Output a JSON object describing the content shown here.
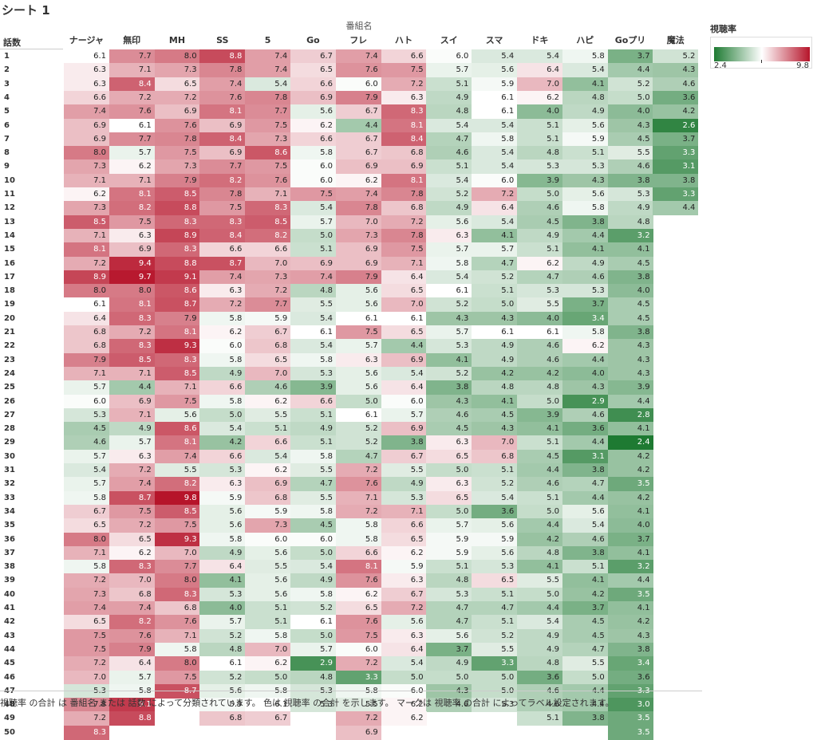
{
  "sheet_title": "シート 1",
  "footer_note": "視聴率 の合計 は 番組名 または 話数 によって分類されています。 色は 視聴率 の合計 を示します。 マークは 視聴率 の合計 によってラベル設定されます。",
  "legend": {
    "title": "視聴率",
    "min_label": "2.4",
    "max_label": "9.8"
  },
  "colors": {
    "low": "#1e7a32",
    "mid": "#ffffff",
    "high": "#b6142a"
  },
  "chart_data": {
    "type": "heatmap",
    "title": "シート 1",
    "xlabel": "番組名",
    "ylabel": "話数",
    "color_range": [
      2.4,
      9.8
    ],
    "columns": [
      "ナージャ",
      "無印",
      "MH",
      "SS",
      "5",
      "Go",
      "フレ",
      "ハト",
      "スイ",
      "スマ",
      "ドキ",
      "ハピ",
      "Goプリ",
      "魔法"
    ],
    "rows": [
      "1",
      "2",
      "3",
      "4",
      "5",
      "6",
      "7",
      "8",
      "9",
      "10",
      "11",
      "12",
      "13",
      "14",
      "15",
      "16",
      "17",
      "18",
      "19",
      "20",
      "21",
      "22",
      "23",
      "24",
      "25",
      "26",
      "27",
      "28",
      "29",
      "30",
      "31",
      "32",
      "33",
      "34",
      "35",
      "36",
      "37",
      "38",
      "39",
      "40",
      "41",
      "42",
      "43",
      "44",
      "45",
      "46",
      "47",
      "48",
      "49",
      "50"
    ],
    "values": [
      [
        6.1,
        7.7,
        8.0,
        8.8,
        7.4,
        6.7,
        7.4,
        6.6,
        6.0,
        5.4,
        5.4,
        5.8,
        3.7,
        5.2
      ],
      [
        6.3,
        7.1,
        7.3,
        7.8,
        7.4,
        6.5,
        7.6,
        7.5,
        5.7,
        5.6,
        6.4,
        5.4,
        4.4,
        4.3
      ],
      [
        6.3,
        8.4,
        6.5,
        7.4,
        5.4,
        6.6,
        6.0,
        7.2,
        5.1,
        5.9,
        7.0,
        4.1,
        5.2,
        4.6
      ],
      [
        6.6,
        7.2,
        7.2,
        7.6,
        7.8,
        6.9,
        7.9,
        6.3,
        4.9,
        6.1,
        6.2,
        4.8,
        5.0,
        3.6
      ],
      [
        7.4,
        7.6,
        6.9,
        8.1,
        7.7,
        5.6,
        6.7,
        8.3,
        4.8,
        6.1,
        4.0,
        4.9,
        4.0,
        4.2
      ],
      [
        6.9,
        6.1,
        7.6,
        6.9,
        7.5,
        6.2,
        4.4,
        8.1,
        5.4,
        5.4,
        5.1,
        5.6,
        4.3,
        2.6
      ],
      [
        6.9,
        7.7,
        7.8,
        8.4,
        7.3,
        6.6,
        6.7,
        8.4,
        4.7,
        5.8,
        5.1,
        5.9,
        4.5,
        3.7
      ],
      [
        8.0,
        5.7,
        7.5,
        6.9,
        8.6,
        5.8,
        6.7,
        6.8,
        4.6,
        5.4,
        4.8,
        5.1,
        5.5,
        3.3
      ],
      [
        7.3,
        6.2,
        7.3,
        7.7,
        7.5,
        6.0,
        6.9,
        6.9,
        5.1,
        5.4,
        5.3,
        5.3,
        4.6,
        3.1
      ],
      [
        7.1,
        7.1,
        7.9,
        8.2,
        7.6,
        6.0,
        6.2,
        8.1,
        5.4,
        6.0,
        3.9,
        4.3,
        3.8,
        3.8
      ],
      [
        6.2,
        8.1,
        8.5,
        7.8,
        7.1,
        7.5,
        7.4,
        7.8,
        5.2,
        7.2,
        5.0,
        5.6,
        5.3,
        3.3
      ],
      [
        7.3,
        8.2,
        8.8,
        7.5,
        8.3,
        5.4,
        7.8,
        6.8,
        4.9,
        6.4,
        4.6,
        5.8,
        4.9,
        4.4
      ],
      [
        8.5,
        7.5,
        8.3,
        8.3,
        8.5,
        5.7,
        7.0,
        7.2,
        5.6,
        5.4,
        4.5,
        3.8,
        4.8,
        null
      ],
      [
        7.1,
        6.3,
        8.9,
        8.4,
        8.2,
        5.0,
        7.3,
        7.8,
        6.3,
        4.1,
        4.9,
        4.4,
        3.2,
        null
      ],
      [
        8.1,
        6.9,
        8.3,
        6.6,
        6.6,
        5.1,
        6.9,
        7.5,
        5.7,
        5.7,
        5.1,
        4.1,
        4.1,
        null
      ],
      [
        7.2,
        9.4,
        8.8,
        8.7,
        7.0,
        6.9,
        6.9,
        7.1,
        5.8,
        4.7,
        6.2,
        4.9,
        4.5,
        null
      ],
      [
        8.9,
        9.7,
        9.1,
        7.4,
        7.3,
        7.4,
        7.9,
        6.4,
        5.4,
        5.2,
        4.7,
        4.6,
        3.8,
        null
      ],
      [
        8.0,
        8.0,
        8.6,
        6.3,
        7.2,
        4.8,
        5.6,
        6.5,
        6.1,
        5.1,
        5.3,
        5.3,
        4.0,
        null
      ],
      [
        6.1,
        8.1,
        8.7,
        7.2,
        7.7,
        5.5,
        5.6,
        7.0,
        5.2,
        5.0,
        5.5,
        3.7,
        4.5,
        null
      ],
      [
        6.4,
        8.3,
        7.9,
        5.8,
        5.9,
        5.4,
        6.1,
        6.1,
        4.3,
        4.3,
        4.0,
        3.4,
        4.5,
        null
      ],
      [
        6.8,
        7.2,
        8.1,
        6.2,
        6.7,
        6.1,
        7.5,
        6.5,
        5.7,
        6.1,
        6.1,
        5.8,
        3.8,
        null
      ],
      [
        6.8,
        8.3,
        9.3,
        6.0,
        6.8,
        5.4,
        5.7,
        4.4,
        5.3,
        4.9,
        4.6,
        6.2,
        4.3,
        null
      ],
      [
        7.9,
        8.5,
        8.3,
        5.8,
        6.5,
        5.8,
        6.3,
        6.9,
        4.1,
        4.9,
        4.6,
        4.4,
        4.3,
        null
      ],
      [
        7.1,
        7.1,
        8.5,
        4.9,
        7.0,
        5.3,
        5.6,
        5.4,
        5.2,
        4.2,
        4.2,
        4.0,
        4.3,
        null
      ],
      [
        5.7,
        4.4,
        7.1,
        6.6,
        4.6,
        3.9,
        5.6,
        6.4,
        3.8,
        4.8,
        4.8,
        4.3,
        3.9,
        null
      ],
      [
        6.0,
        6.9,
        7.5,
        5.8,
        6.2,
        6.6,
        5.0,
        6.0,
        4.3,
        4.1,
        5.0,
        2.9,
        4.4,
        null
      ],
      [
        5.3,
        7.1,
        5.6,
        5.0,
        5.5,
        5.1,
        6.1,
        5.7,
        4.6,
        4.5,
        3.9,
        4.6,
        2.8,
        null
      ],
      [
        4.5,
        4.9,
        8.6,
        5.4,
        5.1,
        4.9,
        5.2,
        6.9,
        4.5,
        4.3,
        4.1,
        3.6,
        4.1,
        null
      ],
      [
        4.6,
        5.7,
        8.1,
        4.2,
        6.6,
        5.1,
        5.2,
        3.8,
        6.3,
        7.0,
        5.1,
        4.4,
        2.4,
        null
      ],
      [
        5.7,
        6.3,
        7.4,
        6.6,
        5.4,
        5.8,
        4.7,
        6.7,
        6.5,
        6.8,
        4.5,
        3.1,
        4.2,
        null
      ],
      [
        5.4,
        7.2,
        5.5,
        5.3,
        6.2,
        5.5,
        7.2,
        5.5,
        5.0,
        5.1,
        4.4,
        3.8,
        4.2,
        null
      ],
      [
        5.7,
        7.4,
        8.2,
        6.3,
        6.9,
        4.7,
        7.6,
        4.9,
        6.3,
        5.2,
        4.6,
        4.7,
        3.5,
        null
      ],
      [
        5.8,
        8.7,
        9.8,
        5.9,
        6.8,
        5.5,
        7.1,
        5.3,
        6.5,
        5.4,
        5.1,
        4.4,
        4.2,
        null
      ],
      [
        6.7,
        7.5,
        8.5,
        5.6,
        5.9,
        5.8,
        7.2,
        7.1,
        5.0,
        3.6,
        5.0,
        5.6,
        4.1,
        null
      ],
      [
        6.5,
        7.2,
        7.5,
        5.6,
        7.3,
        4.5,
        5.8,
        6.6,
        5.7,
        5.6,
        4.4,
        5.4,
        4.0,
        null
      ],
      [
        8.0,
        6.5,
        9.3,
        5.8,
        6.0,
        6.0,
        5.8,
        6.5,
        5.9,
        5.9,
        4.2,
        4.6,
        3.7,
        null
      ],
      [
        7.1,
        6.2,
        7.0,
        4.9,
        5.6,
        5.0,
        6.6,
        6.2,
        5.9,
        5.6,
        4.8,
        3.8,
        4.1,
        null
      ],
      [
        5.8,
        8.3,
        7.7,
        6.4,
        5.5,
        5.4,
        8.1,
        5.9,
        5.1,
        5.3,
        4.1,
        5.1,
        3.2,
        null
      ],
      [
        7.2,
        7.0,
        8.0,
        4.1,
        5.6,
        4.9,
        7.6,
        6.3,
        4.8,
        6.5,
        5.5,
        4.1,
        4.4,
        null
      ],
      [
        7.3,
        6.8,
        8.3,
        5.3,
        5.6,
        5.8,
        6.2,
        6.7,
        5.3,
        5.1,
        5.0,
        4.2,
        3.5,
        null
      ],
      [
        7.4,
        7.4,
        6.8,
        4.0,
        5.1,
        5.2,
        6.5,
        7.2,
        4.7,
        4.7,
        4.4,
        3.7,
        4.1,
        null
      ],
      [
        6.5,
        8.2,
        7.6,
        5.7,
        5.1,
        6.1,
        7.6,
        5.6,
        4.7,
        5.1,
        5.4,
        4.5,
        4.2,
        null
      ],
      [
        7.5,
        7.6,
        7.1,
        5.2,
        5.8,
        5.0,
        7.5,
        6.3,
        5.6,
        5.2,
        4.9,
        4.5,
        4.3,
        null
      ],
      [
        7.5,
        7.9,
        5.8,
        4.8,
        7.0,
        5.7,
        6.0,
        6.4,
        3.7,
        5.5,
        4.9,
        4.7,
        3.8,
        null
      ],
      [
        7.2,
        6.4,
        8.0,
        6.1,
        6.2,
        2.9,
        7.2,
        5.4,
        4.9,
        3.3,
        4.8,
        5.5,
        3.4,
        null
      ],
      [
        7.0,
        5.7,
        7.5,
        5.2,
        5.0,
        4.8,
        3.3,
        5.0,
        5.0,
        5.0,
        3.6,
        5.0,
        3.6,
        null
      ],
      [
        5.3,
        5.8,
        8.7,
        5.6,
        5.8,
        5.3,
        5.8,
        6.0,
        4.3,
        5.0,
        4.6,
        4.4,
        3.3,
        null
      ],
      [
        7.8,
        9.1,
        null,
        5.9,
        6.1,
        5.3,
        5.5,
        6.2,
        4.6,
        5.3,
        4.6,
        4.4,
        3.0,
        null
      ],
      [
        7.2,
        8.8,
        null,
        6.8,
        6.7,
        null,
        7.2,
        6.2,
        null,
        null,
        5.1,
        3.8,
        3.5,
        null
      ],
      [
        8.3,
        null,
        null,
        null,
        null,
        null,
        6.9,
        null,
        null,
        null,
        null,
        null,
        3.5,
        null
      ]
    ]
  }
}
